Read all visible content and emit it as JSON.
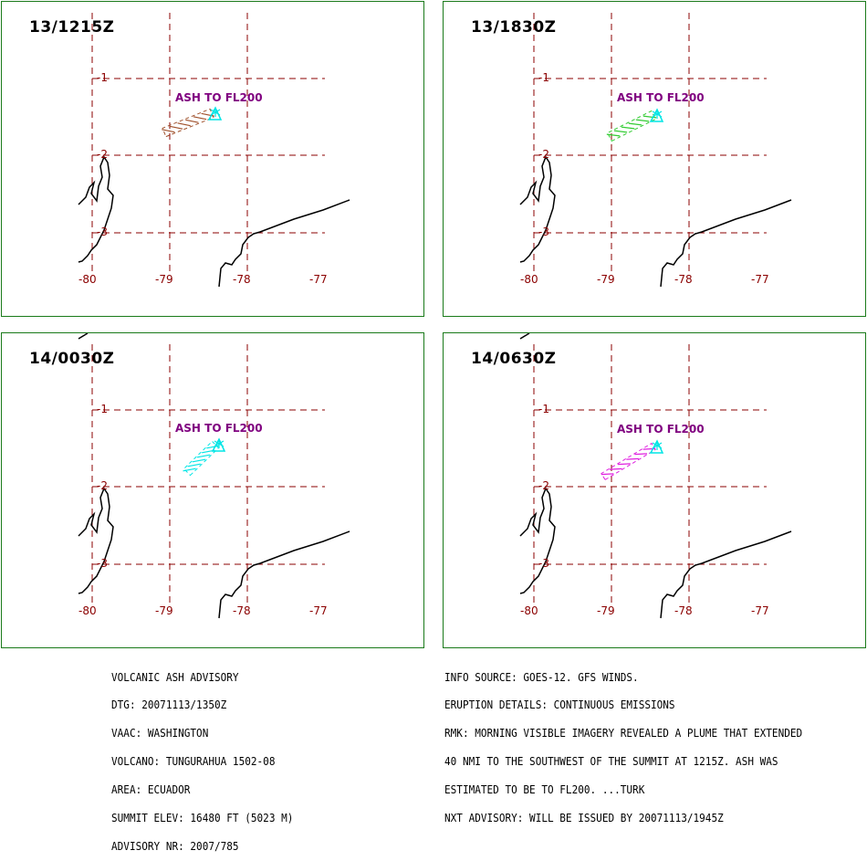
{
  "panels": [
    {
      "time": "13/1215Z",
      "ash_label": "ASH TO FL200",
      "plume_color": "#a0522d"
    },
    {
      "time": "13/1830Z",
      "ash_label": "ASH TO FL200",
      "plume_color": "#33cc33"
    },
    {
      "time": "14/0030Z",
      "ash_label": "ASH TO FL200",
      "plume_color": "#00e5e5"
    },
    {
      "time": "14/0630Z",
      "ash_label": "ASH TO FL200",
      "plume_color": "#e020e0"
    }
  ],
  "lon_labels": [
    "-80",
    "-79",
    "-78",
    "-77"
  ],
  "lat_labels": [
    "-1",
    "-2",
    "-3"
  ],
  "colors": {
    "grid": "#8b0000",
    "border": "#1a7a1a",
    "ash_label": "#800080",
    "volcano": "#00e5e5"
  },
  "advisory_left": [
    "VOLCANIC ASH ADVISORY",
    "DTG: 20071113/1350Z",
    "VAAC: WASHINGTON",
    "VOLCANO: TUNGURAHUA 1502-08",
    "AREA: ECUADOR",
    "SUMMIT ELEV: 16480 FT (5023 M)",
    "ADVISORY NR: 2007/785"
  ],
  "advisory_right": [
    "INFO SOURCE: GOES-12. GFS WINDS.",
    "ERUPTION DETAILS: CONTINUOUS EMISSIONS",
    "RMK: MORNING VISIBLE IMAGERY REVEALED A PLUME THAT EXTENDED",
    "40 NMI TO THE SOUTHWEST OF THE SUMMIT AT 1215Z. ASH WAS",
    "ESTIMATED TO BE TO FL200. ...TURK",
    "NXT ADVISORY: WILL BE ISSUED BY 20071113/1945Z"
  ]
}
